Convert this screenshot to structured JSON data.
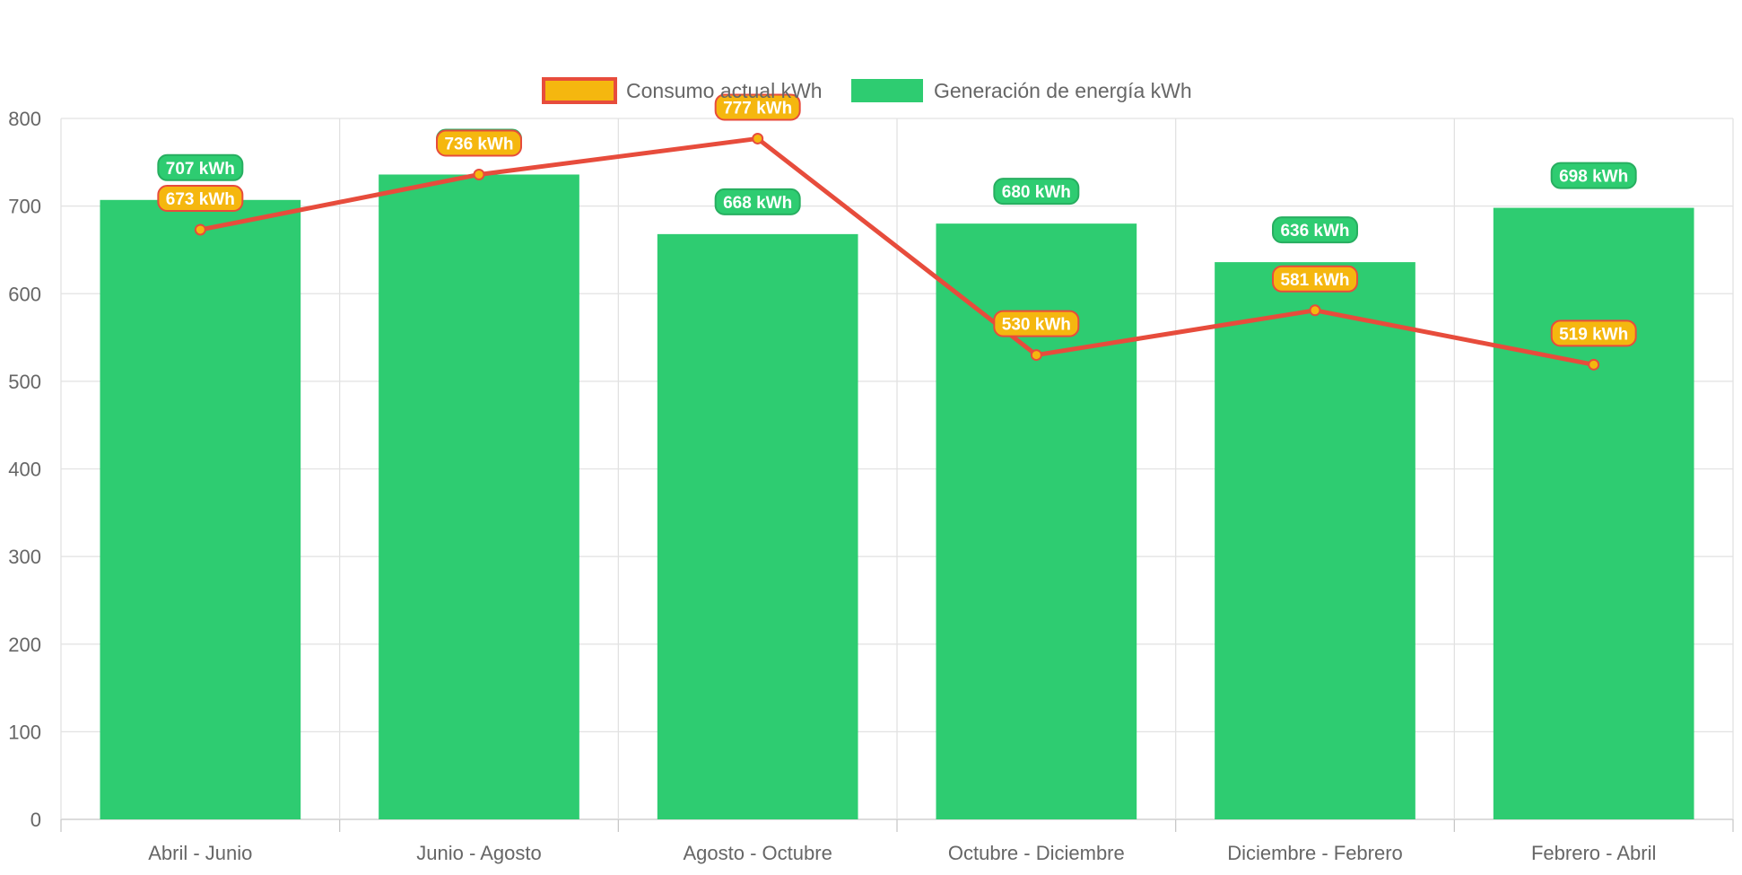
{
  "chart_data": {
    "type": "bar",
    "title": "",
    "xlabel": "",
    "ylabel": "",
    "categories": [
      "Abril - Junio",
      "Junio - Agosto",
      "Agosto - Octubre",
      "Octubre - Diciembre",
      "Diciembre - Febrero",
      "Febrero - Abril"
    ],
    "ylim": [
      0,
      800
    ],
    "yticks": [
      0,
      100,
      200,
      300,
      400,
      500,
      600,
      700,
      800
    ],
    "grid": true,
    "legend_position": "top",
    "series": [
      {
        "name": "Consumo actual kWh",
        "type": "line",
        "values": [
          673,
          736,
          777,
          530,
          581,
          519
        ],
        "labels": [
          "673 kWh",
          "736 kWh",
          "777 kWh",
          "530 kWh",
          "581 kWh",
          "519 kWh"
        ],
        "color": "#e74c3c",
        "fill": "#f5b70f"
      },
      {
        "name": "Generación de energía kWh",
        "type": "bar",
        "values": [
          707,
          736,
          668,
          680,
          636,
          698
        ],
        "labels": [
          "707 kWh",
          "736 kWh",
          "668 kWh",
          "680 kWh",
          "636 kWh",
          "698 kWh"
        ],
        "color": "#2ecc71",
        "label_border": "#27ae60"
      }
    ]
  }
}
